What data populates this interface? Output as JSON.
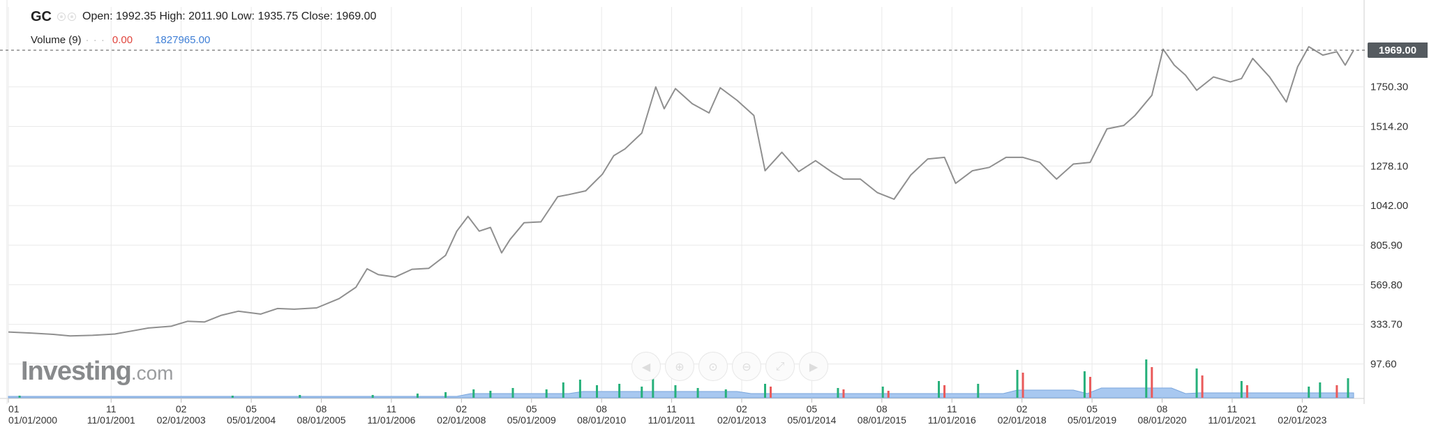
{
  "header": {
    "symbol": "GC",
    "ohlc": "Open: 1992.35 High: 2011.90 Low: 1935.75 Close: 1969.00",
    "volume_label": "Volume (9)",
    "volume_value_1": "0.00",
    "volume_value_2": "1827965.00",
    "eye_icon": "eye-icon",
    "settings_icon": "gear-icon"
  },
  "last_price": "1969.00",
  "brand": {
    "name": "Investing",
    "suffix": ".com"
  },
  "nav_buttons": [
    {
      "name": "scroll-left-icon",
      "glyph": "◀"
    },
    {
      "name": "zoom-in-icon",
      "glyph": "⊕"
    },
    {
      "name": "zoom-reset-icon",
      "glyph": "⊙"
    },
    {
      "name": "zoom-out-icon",
      "glyph": "⊖"
    },
    {
      "name": "fit-icon",
      "glyph": "⤢"
    },
    {
      "name": "scroll-right-icon",
      "glyph": "▶"
    }
  ],
  "colors": {
    "line": "#8f8f8f",
    "grid": "#e9e9e9",
    "volume_up": "#26b07a",
    "volume_down": "#ea5a5a",
    "volume_area": "#a8c8f0",
    "price_tag": "#555b60"
  },
  "chart_data": {
    "type": "line",
    "title": "GC",
    "y_ticks": [
      "1750.30",
      "1514.20",
      "1278.10",
      "1042.00",
      "805.90",
      "569.80",
      "333.70",
      "97.60"
    ],
    "y_tick_values": [
      1750.3,
      1514.2,
      1278.1,
      1042.0,
      805.9,
      569.8,
      333.7,
      97.6
    ],
    "x_ticks": [
      {
        "top": "01",
        "bottom": "01/01/2000",
        "t": 2000.0
      },
      {
        "top": "11",
        "bottom": "11/01/2001",
        "t": 2001.833
      },
      {
        "top": "02",
        "bottom": "02/01/2003",
        "t": 2003.083
      },
      {
        "top": "05",
        "bottom": "05/01/2004",
        "t": 2004.333
      },
      {
        "top": "08",
        "bottom": "08/01/2005",
        "t": 2005.583
      },
      {
        "top": "11",
        "bottom": "11/01/2006",
        "t": 2006.833
      },
      {
        "top": "02",
        "bottom": "02/01/2008",
        "t": 2008.083
      },
      {
        "top": "05",
        "bottom": "05/01/2009",
        "t": 2009.333
      },
      {
        "top": "08",
        "bottom": "08/01/2010",
        "t": 2010.583
      },
      {
        "top": "11",
        "bottom": "11/01/2011",
        "t": 2011.833
      },
      {
        "top": "02",
        "bottom": "02/01/2013",
        "t": 2013.083
      },
      {
        "top": "05",
        "bottom": "05/01/2014",
        "t": 2014.333
      },
      {
        "top": "08",
        "bottom": "08/01/2015",
        "t": 2015.583
      },
      {
        "top": "11",
        "bottom": "11/01/2016",
        "t": 2016.833
      },
      {
        "top": "02",
        "bottom": "02/01/2018",
        "t": 2018.083
      },
      {
        "top": "05",
        "bottom": "05/01/2019",
        "t": 2019.333
      },
      {
        "top": "08",
        "bottom": "08/01/2020",
        "t": 2020.583
      },
      {
        "top": "11",
        "bottom": "11/01/2021",
        "t": 2021.833
      },
      {
        "top": "02",
        "bottom": "02/01/2023",
        "t": 2023.083
      }
    ],
    "x_range": [
      2000.0,
      2024.0
    ],
    "y_range": [
      0,
      2000
    ],
    "last_close": 1969.0,
    "series": [
      {
        "values": [
          [
            2000.0,
            288
          ],
          [
            2000.4,
            282
          ],
          [
            2000.8,
            274
          ],
          [
            2001.1,
            265
          ],
          [
            2001.5,
            268
          ],
          [
            2001.9,
            276
          ],
          [
            2002.2,
            294
          ],
          [
            2002.5,
            312
          ],
          [
            2002.9,
            322
          ],
          [
            2003.2,
            352
          ],
          [
            2003.5,
            348
          ],
          [
            2003.8,
            388
          ],
          [
            2004.1,
            412
          ],
          [
            2004.5,
            395
          ],
          [
            2004.8,
            428
          ],
          [
            2005.1,
            424
          ],
          [
            2005.5,
            432
          ],
          [
            2005.9,
            487
          ],
          [
            2006.2,
            555
          ],
          [
            2006.4,
            665
          ],
          [
            2006.6,
            630
          ],
          [
            2006.9,
            616
          ],
          [
            2007.2,
            662
          ],
          [
            2007.5,
            668
          ],
          [
            2007.8,
            745
          ],
          [
            2008.0,
            890
          ],
          [
            2008.2,
            978
          ],
          [
            2008.4,
            890
          ],
          [
            2008.6,
            912
          ],
          [
            2008.8,
            760
          ],
          [
            2008.95,
            840
          ],
          [
            2009.2,
            940
          ],
          [
            2009.5,
            945
          ],
          [
            2009.8,
            1095
          ],
          [
            2010.0,
            1108
          ],
          [
            2010.3,
            1130
          ],
          [
            2010.6,
            1230
          ],
          [
            2010.8,
            1340
          ],
          [
            2011.0,
            1380
          ],
          [
            2011.3,
            1475
          ],
          [
            2011.55,
            1750
          ],
          [
            2011.7,
            1620
          ],
          [
            2011.9,
            1740
          ],
          [
            2012.2,
            1650
          ],
          [
            2012.5,
            1595
          ],
          [
            2012.7,
            1745
          ],
          [
            2013.0,
            1670
          ],
          [
            2013.3,
            1580
          ],
          [
            2013.5,
            1250
          ],
          [
            2013.8,
            1360
          ],
          [
            2014.1,
            1245
          ],
          [
            2014.4,
            1310
          ],
          [
            2014.7,
            1240
          ],
          [
            2014.9,
            1200
          ],
          [
            2015.2,
            1200
          ],
          [
            2015.5,
            1120
          ],
          [
            2015.8,
            1080
          ],
          [
            2016.1,
            1225
          ],
          [
            2016.4,
            1320
          ],
          [
            2016.7,
            1330
          ],
          [
            2016.9,
            1175
          ],
          [
            2017.2,
            1250
          ],
          [
            2017.5,
            1270
          ],
          [
            2017.8,
            1330
          ],
          [
            2018.1,
            1330
          ],
          [
            2018.4,
            1300
          ],
          [
            2018.7,
            1200
          ],
          [
            2019.0,
            1290
          ],
          [
            2019.3,
            1300
          ],
          [
            2019.6,
            1500
          ],
          [
            2019.9,
            1520
          ],
          [
            2020.1,
            1580
          ],
          [
            2020.4,
            1700
          ],
          [
            2020.6,
            1975
          ],
          [
            2020.8,
            1880
          ],
          [
            2021.0,
            1820
          ],
          [
            2021.2,
            1730
          ],
          [
            2021.5,
            1810
          ],
          [
            2021.8,
            1780
          ],
          [
            2022.0,
            1800
          ],
          [
            2022.2,
            1920
          ],
          [
            2022.5,
            1810
          ],
          [
            2022.8,
            1660
          ],
          [
            2023.0,
            1870
          ],
          [
            2023.2,
            1990
          ],
          [
            2023.45,
            1940
          ],
          [
            2023.7,
            1960
          ],
          [
            2023.85,
            1880
          ],
          [
            2024.0,
            1969
          ]
        ]
      }
    ],
    "volume": [
      {
        "t": 2000.2,
        "v": 3,
        "dir": "up"
      },
      {
        "t": 2004.0,
        "v": 3,
        "dir": "up"
      },
      {
        "t": 2005.2,
        "v": 4,
        "dir": "up"
      },
      {
        "t": 2006.5,
        "v": 4,
        "dir": "up"
      },
      {
        "t": 2007.3,
        "v": 6,
        "dir": "up"
      },
      {
        "t": 2007.8,
        "v": 8,
        "dir": "up"
      },
      {
        "t": 2008.3,
        "v": 12,
        "dir": "up"
      },
      {
        "t": 2008.6,
        "v": 10,
        "dir": "up"
      },
      {
        "t": 2009.0,
        "v": 14,
        "dir": "up"
      },
      {
        "t": 2009.6,
        "v": 12,
        "dir": "up"
      },
      {
        "t": 2009.9,
        "v": 22,
        "dir": "up"
      },
      {
        "t": 2010.2,
        "v": 26,
        "dir": "up"
      },
      {
        "t": 2010.5,
        "v": 18,
        "dir": "up"
      },
      {
        "t": 2010.9,
        "v": 20,
        "dir": "up"
      },
      {
        "t": 2011.3,
        "v": 16,
        "dir": "up"
      },
      {
        "t": 2011.5,
        "v": 28,
        "dir": "up"
      },
      {
        "t": 2011.9,
        "v": 18,
        "dir": "up"
      },
      {
        "t": 2012.3,
        "v": 14,
        "dir": "up"
      },
      {
        "t": 2012.8,
        "v": 12,
        "dir": "up"
      },
      {
        "t": 2013.5,
        "v": 20,
        "dir": "up"
      },
      {
        "t": 2013.6,
        "v": 16,
        "dir": "down"
      },
      {
        "t": 2014.8,
        "v": 14,
        "dir": "up"
      },
      {
        "t": 2014.9,
        "v": 12,
        "dir": "down"
      },
      {
        "t": 2015.6,
        "v": 16,
        "dir": "up"
      },
      {
        "t": 2015.7,
        "v": 10,
        "dir": "down"
      },
      {
        "t": 2016.6,
        "v": 24,
        "dir": "up"
      },
      {
        "t": 2016.7,
        "v": 18,
        "dir": "down"
      },
      {
        "t": 2017.3,
        "v": 20,
        "dir": "up"
      },
      {
        "t": 2018.0,
        "v": 40,
        "dir": "up"
      },
      {
        "t": 2018.1,
        "v": 36,
        "dir": "down"
      },
      {
        "t": 2019.2,
        "v": 38,
        "dir": "up"
      },
      {
        "t": 2019.3,
        "v": 30,
        "dir": "down"
      },
      {
        "t": 2020.3,
        "v": 55,
        "dir": "up"
      },
      {
        "t": 2020.4,
        "v": 44,
        "dir": "down"
      },
      {
        "t": 2021.2,
        "v": 42,
        "dir": "up"
      },
      {
        "t": 2021.3,
        "v": 32,
        "dir": "down"
      },
      {
        "t": 2022.0,
        "v": 24,
        "dir": "up"
      },
      {
        "t": 2022.1,
        "v": 18,
        "dir": "down"
      },
      {
        "t": 2023.2,
        "v": 16,
        "dir": "up"
      },
      {
        "t": 2023.4,
        "v": 22,
        "dir": "up"
      },
      {
        "t": 2023.7,
        "v": 18,
        "dir": "down"
      },
      {
        "t": 2023.9,
        "v": 28,
        "dir": "up"
      }
    ]
  }
}
